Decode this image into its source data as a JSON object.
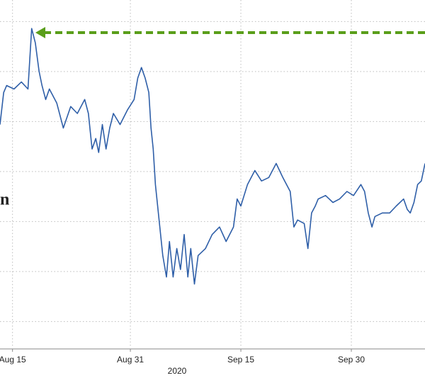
{
  "chart_data": {
    "type": "line",
    "annotation": "n",
    "axis_caption": "2020",
    "xlim": [
      12.3,
      70
    ],
    "ylim": [
      -0.52,
      6.43
    ],
    "xticks": [
      {
        "value": 14,
        "label": "Aug 15"
      },
      {
        "value": 30,
        "label": "Aug 31"
      },
      {
        "value": 45,
        "label": "Sep 15"
      },
      {
        "value": 60,
        "label": "Sep 30"
      }
    ],
    "ygrid": [
      0,
      1,
      2,
      3,
      4,
      5,
      6
    ],
    "grid": true,
    "series": [
      {
        "color": "#2f5fa8",
        "x": [
          12.3,
          12.8,
          13.2,
          14.2,
          15.2,
          16.1,
          16.6,
          17.1,
          17.6,
          18.0,
          18.5,
          19.0,
          20.0,
          20.9,
          21.9,
          22.8,
          23.8,
          24.3,
          24.8,
          25.3,
          25.7,
          26.2,
          26.7,
          27.2,
          27.7,
          28.6,
          29.6,
          30.5,
          31.0,
          31.5,
          32.0,
          32.5,
          32.8,
          33.1,
          33.4,
          33.9,
          34.4,
          34.9,
          35.3,
          35.8,
          36.3,
          36.8,
          37.3,
          37.8,
          38.2,
          38.7,
          39.2,
          40.2,
          41.1,
          42.1,
          43.0,
          44.0,
          44.5,
          45.0,
          45.9,
          46.9,
          47.8,
          48.8,
          49.8,
          50.7,
          51.7,
          52.2,
          52.7,
          53.6,
          54.1,
          54.6,
          55.1,
          55.5,
          56.5,
          57.5,
          58.4,
          59.4,
          60.3,
          61.3,
          61.8,
          62.3,
          62.8,
          63.2,
          64.2,
          65.2,
          66.1,
          67.1,
          67.6,
          68.0,
          68.5,
          69.0,
          69.5,
          70.0
        ],
        "values": [
          3.94,
          4.58,
          4.72,
          4.65,
          4.79,
          4.65,
          5.86,
          5.57,
          5.01,
          4.72,
          4.44,
          4.65,
          4.37,
          3.87,
          4.3,
          4.16,
          4.44,
          4.16,
          3.45,
          3.66,
          3.38,
          3.94,
          3.45,
          3.87,
          4.16,
          3.94,
          4.23,
          4.44,
          4.87,
          5.08,
          4.87,
          4.58,
          3.87,
          3.45,
          2.74,
          2.03,
          1.32,
          0.89,
          1.6,
          0.89,
          1.46,
          1.04,
          1.74,
          0.89,
          1.46,
          0.75,
          1.32,
          1.46,
          1.74,
          1.89,
          1.6,
          1.89,
          2.45,
          2.31,
          2.74,
          3.02,
          2.81,
          2.88,
          3.16,
          2.88,
          2.6,
          1.89,
          2.03,
          1.96,
          1.46,
          2.17,
          2.31,
          2.45,
          2.52,
          2.38,
          2.45,
          2.6,
          2.52,
          2.74,
          2.6,
          2.17,
          1.89,
          2.1,
          2.17,
          2.17,
          2.31,
          2.45,
          2.24,
          2.17,
          2.38,
          2.74,
          2.81,
          3.16
        ]
      }
    ]
  }
}
